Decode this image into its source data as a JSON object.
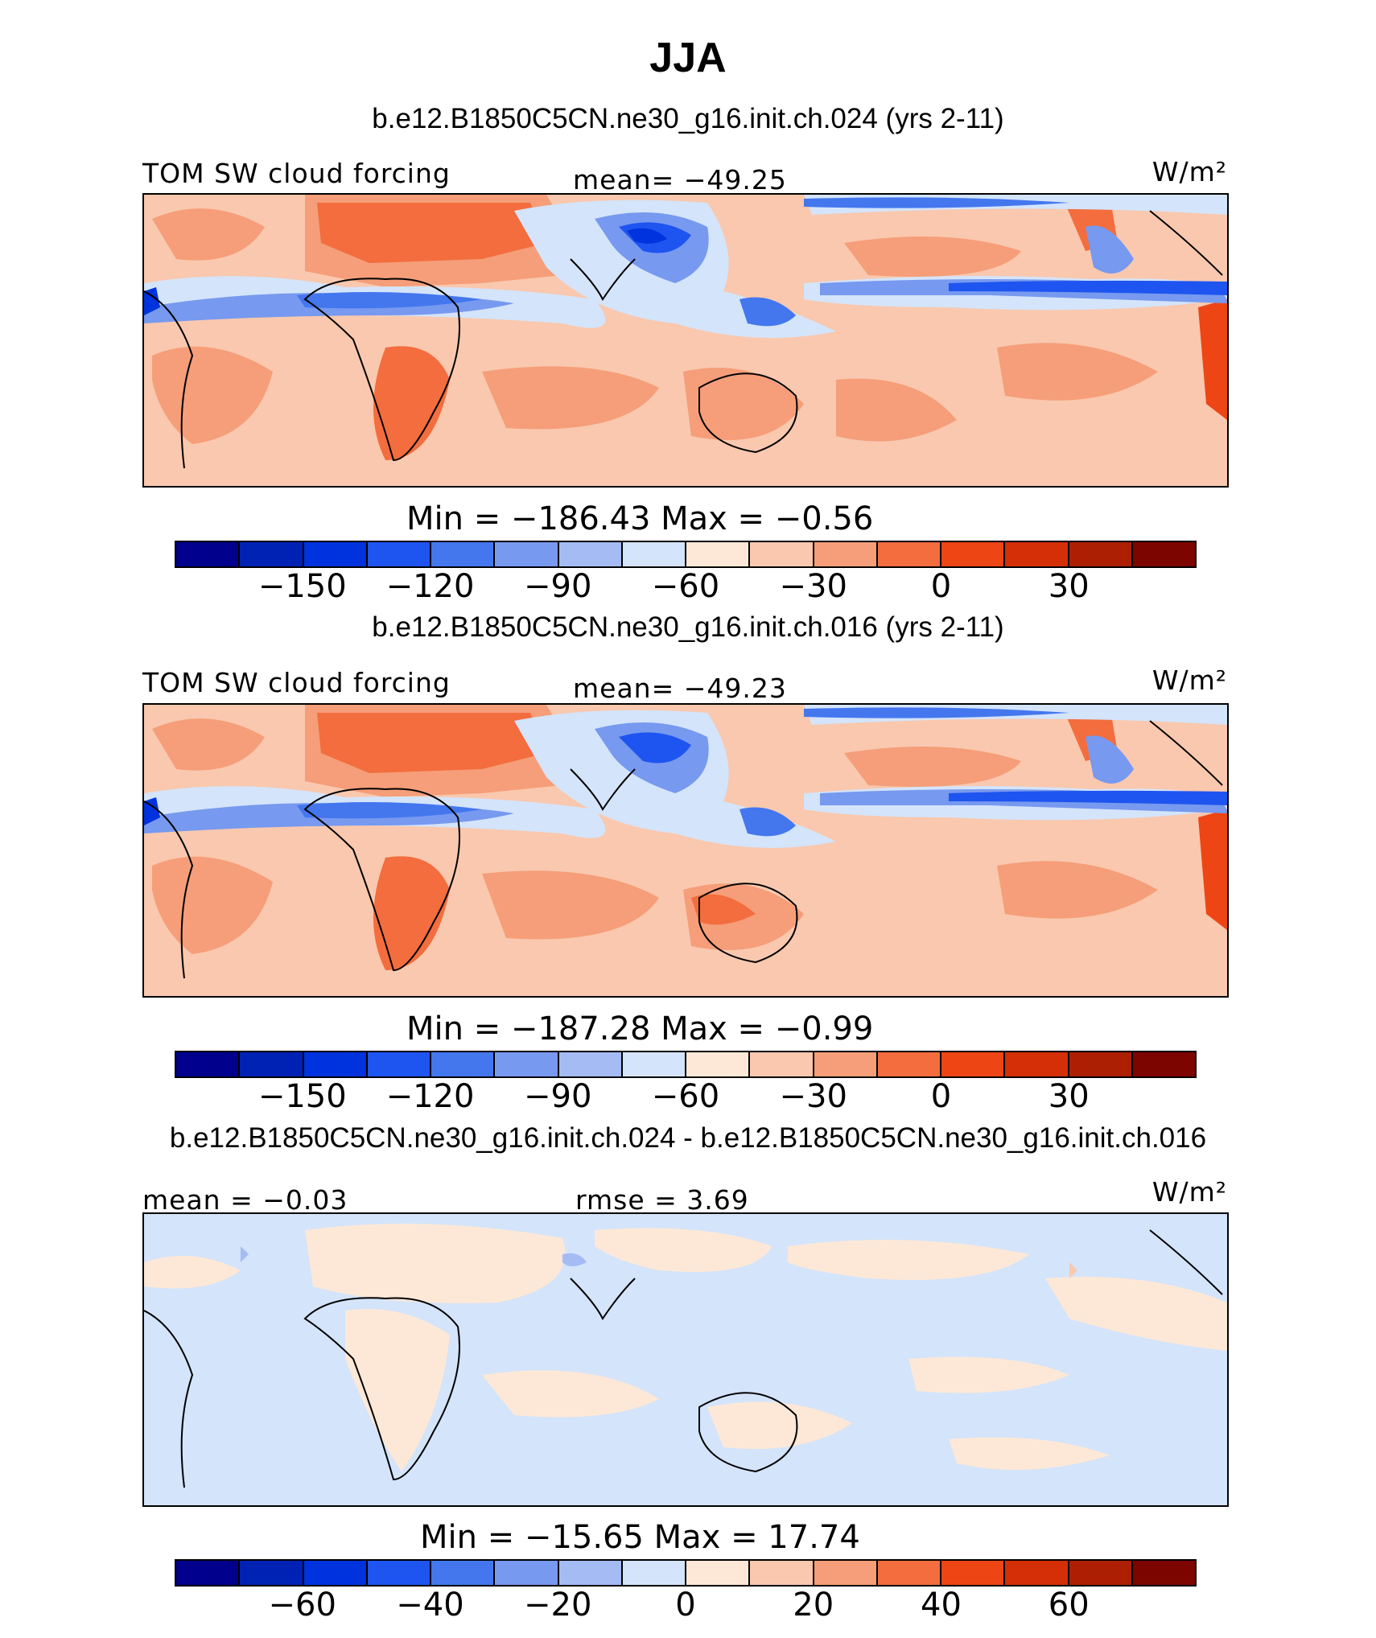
{
  "figure_title": "JJA",
  "panels": [
    {
      "title": "b.e12.B1850C5CN.ne30_g16.init.ch.024 (yrs 2-11)",
      "left_label": "TOM SW cloud forcing",
      "center_label": "mean= −49.25",
      "units": "W/m²",
      "stats": "Min = −186.43 Max = −0.56"
    },
    {
      "title": "b.e12.B1850C5CN.ne30_g16.init.ch.016 (yrs 2-11)",
      "left_label": "TOM SW cloud forcing",
      "center_label": "mean= −49.23",
      "units": "W/m²",
      "stats": "Min = −187.28 Max = −0.99"
    },
    {
      "title": "b.e12.B1850C5CN.ne30_g16.init.ch.024 - b.e12.B1850C5CN.ne30_g16.init.ch.016",
      "left_label": "mean = −0.03",
      "center_label": "rmse = 3.69",
      "units": "W/m²",
      "stats": "Min = −15.65 Max = 17.74"
    }
  ],
  "colorbar": {
    "colors": [
      "#00008c",
      "#0022b4",
      "#0033dd",
      "#1e55f0",
      "#4477ee",
      "#7799ef",
      "#a4bbf4",
      "#d4e4fa",
      "#fde8d7",
      "#f9c8ae",
      "#f59e79",
      "#f36d3e",
      "#ee4515",
      "#d42f07",
      "#ad1f03",
      "#7d0500"
    ],
    "ticks_field": [
      "−150",
      "−120",
      "−90",
      "−60",
      "−30",
      "0",
      "30"
    ],
    "ticks_diff": [
      "−60",
      "−40",
      "−20",
      "0",
      "20",
      "40",
      "60"
    ]
  },
  "chart_data": [
    {
      "type": "heatmap",
      "title": "b.e12.B1850C5CN.ne30_g16.init.ch.024 (yrs 2-11)",
      "variable": "TOM SW cloud forcing",
      "units": "W/m²",
      "mean": -49.25,
      "min": -186.43,
      "max": -0.56,
      "levels": [
        -170,
        -160,
        -150,
        -140,
        -130,
        -120,
        -110,
        -100,
        -90,
        -80,
        -70,
        -60,
        -50,
        -40,
        -30,
        -20,
        -10,
        0,
        10,
        20,
        30,
        40
      ],
      "colorbar_tick_labels": [
        -150,
        -120,
        -90,
        -60,
        -30,
        0,
        30
      ]
    },
    {
      "type": "heatmap",
      "title": "b.e12.B1850C5CN.ne30_g16.init.ch.016 (yrs 2-11)",
      "variable": "TOM SW cloud forcing",
      "units": "W/m²",
      "mean": -49.23,
      "min": -187.28,
      "max": -0.99,
      "colorbar_tick_labels": [
        -150,
        -120,
        -90,
        -60,
        -30,
        0,
        30
      ]
    },
    {
      "type": "heatmap",
      "title": "b.e12.B1850C5CN.ne30_g16.init.ch.024 - b.e12.B1850C5CN.ne30_g16.init.ch.016",
      "units": "W/m²",
      "mean": -0.03,
      "rmse": 3.69,
      "min": -15.65,
      "max": 17.74,
      "colorbar_tick_labels": [
        -60,
        -40,
        -20,
        0,
        20,
        40,
        60
      ]
    }
  ]
}
